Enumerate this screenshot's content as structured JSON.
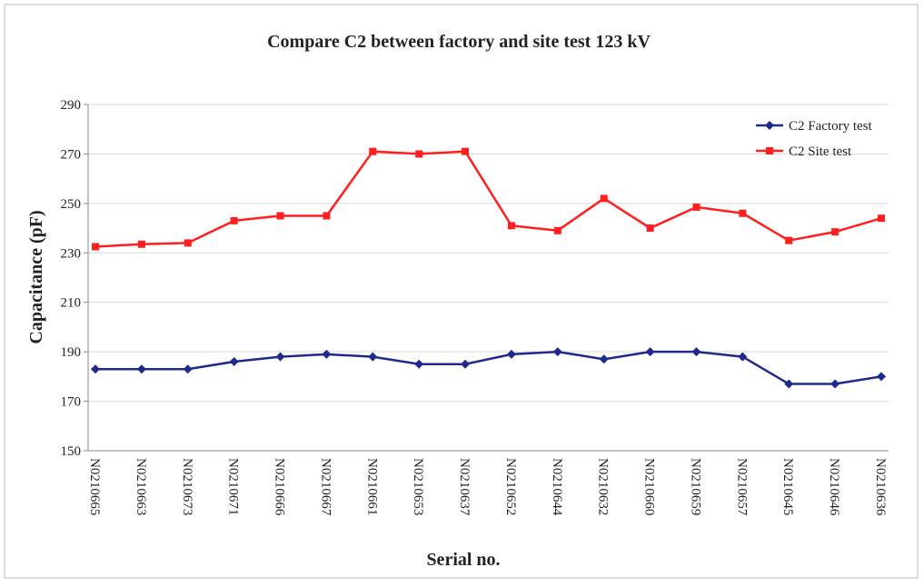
{
  "chart_data": {
    "type": "line",
    "title": "Compare C2 between factory and site test 123 kV",
    "x_label": "Serial no.",
    "y_label": "Capacitance (pF)",
    "categories": [
      "N0210665",
      "N0210663",
      "N0210673",
      "N0210671",
      "N0210666",
      "N0210667",
      "N0210661",
      "N0210653",
      "N0210637",
      "N0210652",
      "N0210644",
      "N0210632",
      "N0210660",
      "N0210659",
      "N0210657",
      "N0210645",
      "N0210646",
      "N0210636"
    ],
    "series": [
      {
        "name": "C2 Factory test",
        "color": "#1f2a8c",
        "marker": "diamond",
        "values": [
          183,
          183,
          183,
          186,
          188,
          189,
          188,
          185,
          185,
          189,
          190,
          187,
          190,
          190,
          188,
          177,
          177,
          180
        ]
      },
      {
        "name": "C2 Site test",
        "color": "#ff1f1f",
        "marker": "square",
        "values": [
          232.5,
          233.5,
          234,
          243,
          245,
          245,
          271,
          270,
          271,
          241,
          239,
          252,
          240,
          248.5,
          246,
          235,
          238.5,
          244
        ]
      }
    ],
    "ylim": [
      150,
      290
    ],
    "yticks": [
      150,
      170,
      190,
      210,
      230,
      250,
      270,
      290
    ],
    "grid": true,
    "legend": "top-right"
  }
}
